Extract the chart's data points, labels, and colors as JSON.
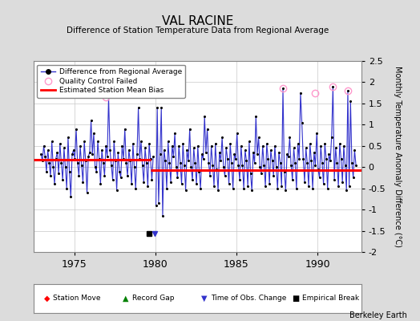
{
  "title": "VAL RACINE",
  "subtitle": "Difference of Station Temperature Data from Regional Average",
  "ylabel": "Monthly Temperature Anomaly Difference (°C)",
  "xlabel_years": [
    1975,
    1980,
    1985,
    1990
  ],
  "ylim": [
    -2,
    2.5
  ],
  "xlim_start": 1972.5,
  "xlim_end": 1992.7,
  "background_color": "#dcdcdc",
  "plot_bg_color": "#ffffff",
  "grid_color": "#c8c8c8",
  "line_color": "#3333cc",
  "marker_color": "#000000",
  "bias_color": "#ff0000",
  "qc_color": "#ff99cc",
  "segment1_start": 1972.5,
  "segment1_end": 1979.7,
  "segment1_bias": 0.18,
  "segment2_start": 1979.7,
  "segment2_end": 1992.7,
  "segment2_bias": -0.07,
  "empirical_break_x": 1979.6,
  "empirical_break_y": -1.57,
  "berkeley_earth_label": "Berkeley Earth",
  "data_x": [
    1972.958,
    1973.042,
    1973.125,
    1973.208,
    1973.292,
    1973.375,
    1973.458,
    1973.542,
    1973.625,
    1973.708,
    1973.792,
    1973.875,
    1973.958,
    1974.042,
    1974.125,
    1974.208,
    1974.292,
    1974.375,
    1974.458,
    1974.542,
    1974.625,
    1974.708,
    1974.792,
    1974.875,
    1974.958,
    1975.042,
    1975.125,
    1975.208,
    1975.292,
    1975.375,
    1975.458,
    1975.542,
    1975.625,
    1975.708,
    1975.792,
    1975.875,
    1975.958,
    1976.042,
    1976.125,
    1976.208,
    1976.292,
    1976.375,
    1976.458,
    1976.542,
    1976.625,
    1976.708,
    1976.792,
    1976.875,
    1976.958,
    1977.042,
    1977.125,
    1977.208,
    1977.292,
    1977.375,
    1977.458,
    1977.542,
    1977.625,
    1977.708,
    1977.792,
    1977.875,
    1977.958,
    1978.042,
    1978.125,
    1978.208,
    1978.292,
    1978.375,
    1978.458,
    1978.542,
    1978.625,
    1978.708,
    1978.792,
    1978.875,
    1978.958,
    1979.042,
    1979.125,
    1979.208,
    1979.292,
    1979.375,
    1979.458,
    1979.542,
    1979.625,
    1979.708,
    1979.792,
    1979.875,
    1980.042,
    1980.125,
    1980.208,
    1980.292,
    1980.375,
    1980.458,
    1980.542,
    1980.625,
    1980.708,
    1980.792,
    1980.875,
    1980.958,
    1981.042,
    1981.125,
    1981.208,
    1981.292,
    1981.375,
    1981.458,
    1981.542,
    1981.625,
    1981.708,
    1981.792,
    1981.875,
    1981.958,
    1982.042,
    1982.125,
    1982.208,
    1982.292,
    1982.375,
    1982.458,
    1982.542,
    1982.625,
    1982.708,
    1982.792,
    1982.875,
    1982.958,
    1983.042,
    1983.125,
    1983.208,
    1983.292,
    1983.375,
    1983.458,
    1983.542,
    1983.625,
    1983.708,
    1983.792,
    1983.875,
    1983.958,
    1984.042,
    1984.125,
    1984.208,
    1984.292,
    1984.375,
    1984.458,
    1984.542,
    1984.625,
    1984.708,
    1984.792,
    1984.875,
    1984.958,
    1985.042,
    1985.125,
    1985.208,
    1985.292,
    1985.375,
    1985.458,
    1985.542,
    1985.625,
    1985.708,
    1985.792,
    1985.875,
    1985.958,
    1986.042,
    1986.125,
    1986.208,
    1986.292,
    1986.375,
    1986.458,
    1986.542,
    1986.625,
    1986.708,
    1986.792,
    1986.875,
    1986.958,
    1987.042,
    1987.125,
    1987.208,
    1987.292,
    1987.375,
    1987.458,
    1987.542,
    1987.625,
    1987.708,
    1987.792,
    1987.875,
    1987.958,
    1988.042,
    1988.125,
    1988.208,
    1988.292,
    1988.375,
    1988.458,
    1988.542,
    1988.625,
    1988.708,
    1988.792,
    1988.875,
    1988.958,
    1989.042,
    1989.125,
    1989.208,
    1989.292,
    1989.375,
    1989.458,
    1989.542,
    1989.625,
    1989.708,
    1989.792,
    1989.875,
    1989.958,
    1990.042,
    1990.125,
    1990.208,
    1990.292,
    1990.375,
    1990.458,
    1990.542,
    1990.625,
    1990.708,
    1990.792,
    1990.875,
    1990.958,
    1991.042,
    1991.125,
    1991.208,
    1991.292,
    1991.375,
    1991.458,
    1991.542,
    1991.625,
    1991.708,
    1991.792,
    1991.875,
    1991.958,
    1992.042,
    1992.125,
    1992.208,
    1992.292,
    1992.375
  ],
  "data_y": [
    0.3,
    0.15,
    0.5,
    0.25,
    -0.1,
    0.4,
    0.1,
    -0.2,
    0.6,
    0.0,
    -0.4,
    0.2,
    0.35,
    -0.15,
    0.55,
    0.1,
    -0.3,
    0.45,
    0.0,
    -0.5,
    0.7,
    -0.1,
    -0.7,
    0.3,
    0.4,
    0.2,
    0.9,
    0.1,
    -0.2,
    0.5,
    0.05,
    -0.35,
    0.6,
    0.15,
    -0.6,
    0.25,
    0.35,
    1.1,
    0.3,
    0.8,
    0.0,
    -0.1,
    0.6,
    0.2,
    -0.4,
    0.4,
    0.1,
    -0.2,
    0.5,
    0.25,
    1.65,
    0.4,
    0.05,
    -0.3,
    0.6,
    0.15,
    -0.55,
    0.35,
    -0.1,
    -0.25,
    0.5,
    0.2,
    0.9,
    0.1,
    -0.2,
    0.4,
    0.15,
    -0.4,
    0.55,
    0.0,
    -0.5,
    0.3,
    1.4,
    0.2,
    0.6,
    0.05,
    -0.35,
    0.45,
    0.1,
    -0.45,
    0.55,
    0.2,
    -0.3,
    0.25,
    -0.9,
    1.4,
    -0.85,
    0.3,
    1.4,
    -1.15,
    0.4,
    0.15,
    -0.5,
    0.6,
    0.1,
    -0.35,
    0.5,
    0.25,
    0.8,
    0.0,
    -0.25,
    0.5,
    0.1,
    -0.4,
    0.55,
    0.05,
    -0.55,
    0.4,
    0.15,
    0.9,
    0.0,
    -0.3,
    0.45,
    0.1,
    -0.4,
    0.5,
    -0.1,
    -0.5,
    0.3,
    0.2,
    1.2,
    0.35,
    0.9,
    0.1,
    -0.2,
    0.5,
    0.05,
    -0.45,
    0.55,
    -0.05,
    -0.55,
    0.35,
    0.15,
    0.7,
    0.0,
    -0.2,
    0.45,
    0.2,
    -0.4,
    0.55,
    0.1,
    -0.5,
    0.3,
    0.2,
    0.8,
    0.05,
    -0.3,
    0.5,
    0.05,
    -0.5,
    0.4,
    0.15,
    -0.45,
    0.6,
    -0.15,
    -0.55,
    0.35,
    0.1,
    1.2,
    0.3,
    0.7,
    0.0,
    -0.15,
    0.5,
    0.05,
    -0.45,
    0.55,
    0.2,
    -0.4,
    0.4,
    0.15,
    -0.2,
    0.5,
    0.0,
    -0.5,
    0.35,
    0.1,
    -0.45,
    1.85,
    -0.1,
    -0.55,
    0.3,
    0.25,
    0.7,
    0.05,
    -0.3,
    0.45,
    0.1,
    -0.5,
    0.55,
    0.2,
    1.75,
    1.05,
    0.2,
    -0.35,
    0.45,
    0.1,
    -0.45,
    0.55,
    0.15,
    -0.5,
    0.35,
    0.05,
    0.8,
    -0.05,
    -0.25,
    0.5,
    0.1,
    -0.4,
    0.55,
    0.2,
    -0.5,
    0.3,
    0.15,
    0.7,
    1.9,
    -0.3,
    0.45,
    0.1,
    -0.45,
    0.55,
    0.2,
    -0.35,
    0.5,
    0.05,
    -0.55,
    1.8,
    -0.45,
    1.55,
    0.1,
    -0.25,
    0.4,
    0.05
  ],
  "qc_failed_x": [
    1976.958,
    1987.875,
    1989.875,
    1990.958,
    1991.875
  ],
  "qc_failed_y": [
    1.65,
    1.85,
    1.75,
    1.9,
    1.8
  ],
  "obs_change_x": [
    1979.96
  ],
  "obs_change_y": [
    -1.57
  ],
  "gap_x1": 1979.875,
  "gap_x2": 1980.042
}
